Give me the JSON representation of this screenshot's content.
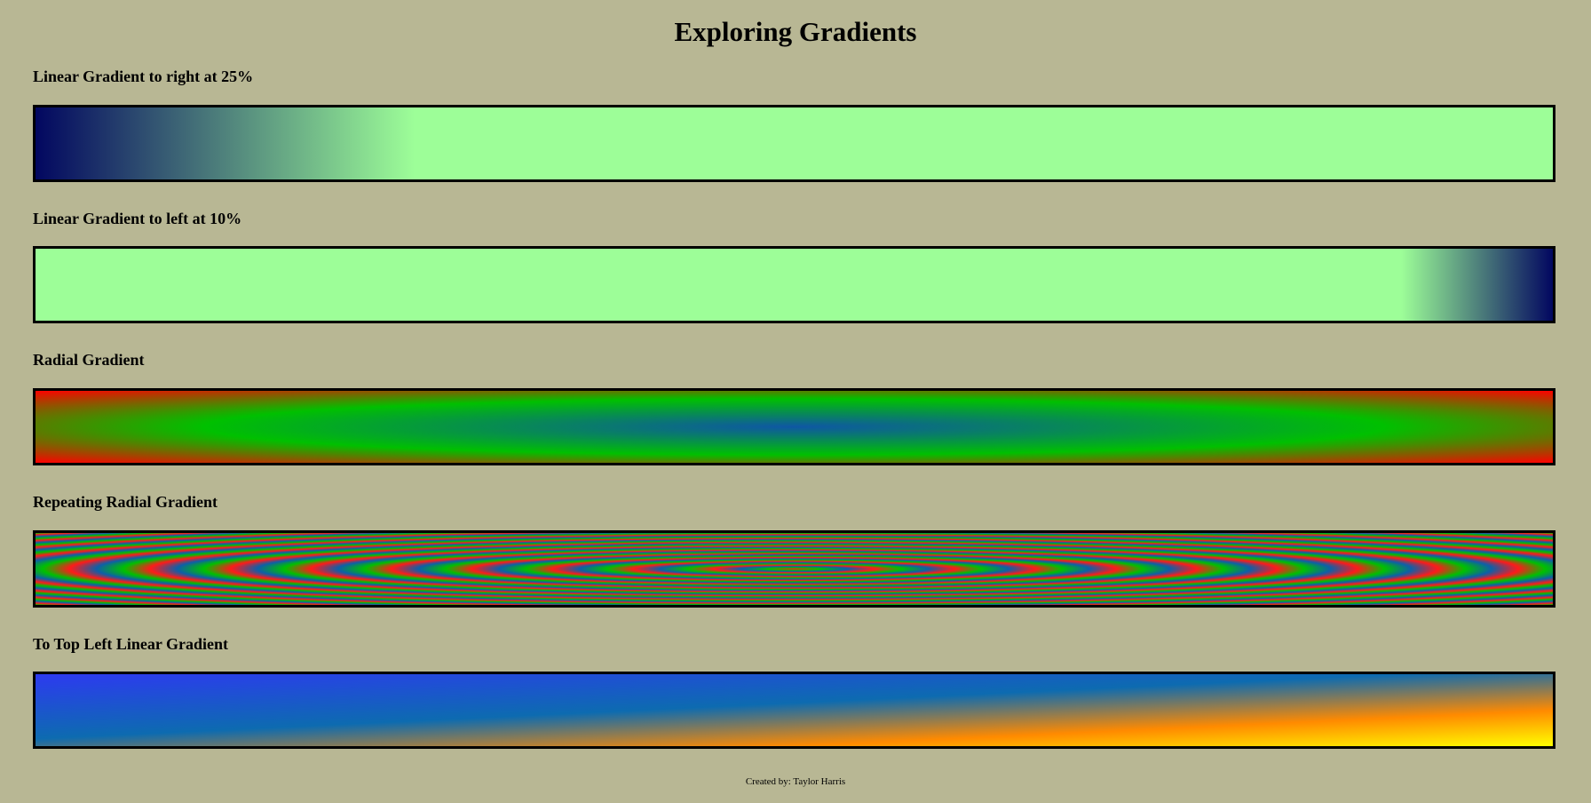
{
  "page": {
    "title": "Exploring Gradients",
    "footer": "Created by: Taylor Harris",
    "background_color": "#b8b794"
  },
  "sections": [
    {
      "label": "Linear Gradient to right at 25%",
      "gradient": "linear-gradient(to right, #020760 0%, #9dfe98 25%, #9dfe98 100%)"
    },
    {
      "label": "Linear Gradient to left at 10%",
      "gradient": "linear-gradient(to left, #020760 0%, #9dfe98 10%, #9dfe98 100%)"
    },
    {
      "label": "Radial Gradient",
      "gradient": "radial-gradient(ellipse at center, #0e57a4 0%, #00c000 55%, #ff0000 100%)"
    },
    {
      "label": "Repeating Radial Gradient",
      "gradient": "repeating-radial-gradient(ellipse at center, #ff1a1a 0%, #00c000 2.5%, #0e5fa8 5%, #ff1a1a 7.5%)"
    },
    {
      "label": "To Top Left Linear Gradient",
      "gradient": "linear-gradient(to top left, #ffff00 0%, #ff8a00 25%, #0d6bb0 55%, #2d3af0 100%)"
    }
  ]
}
